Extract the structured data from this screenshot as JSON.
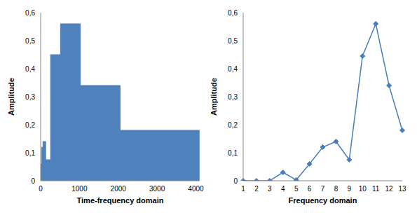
{
  "chart_data": [
    {
      "type": "area",
      "x_label": "Time-frequency domain",
      "y_label": "Amplitude",
      "color": "#4f81bd",
      "x": [
        0,
        30,
        30,
        60,
        60,
        130,
        130,
        256,
        256,
        512,
        512,
        1024,
        1024,
        2048,
        2048,
        4096
      ],
      "values": [
        0.06,
        0.06,
        0.12,
        0.12,
        0.14,
        0.14,
        0.075,
        0.075,
        0.45,
        0.45,
        0.56,
        0.56,
        0.34,
        0.34,
        0.18,
        0.18
      ],
      "xlim": [
        0,
        4100
      ],
      "xticks": [
        0,
        1000,
        2000,
        3000,
        4000
      ],
      "ylim": [
        0,
        0.6
      ],
      "yticks": [
        0,
        {
          "value": 0.1,
          "label": "0,1"
        },
        {
          "value": 0.2,
          "label": "0,2"
        },
        {
          "value": 0.3,
          "label": "0,3"
        },
        {
          "value": 0.4,
          "label": "0,4"
        },
        {
          "value": 0.5,
          "label": "0,5"
        },
        {
          "value": 0.6,
          "label": "0,6"
        }
      ],
      "grid": false
    },
    {
      "type": "line",
      "x_label": "Frequency domain",
      "y_label": "Amplitude",
      "color": "#4a7ebb",
      "marker": "diamond",
      "categories": [
        "1",
        "2",
        "3",
        "4",
        "5",
        "6",
        "7",
        "8",
        "9",
        "10",
        "11",
        "12",
        "13"
      ],
      "values": [
        0,
        0,
        0,
        0.03,
        0.003,
        0.06,
        0.12,
        0.14,
        0.075,
        0.445,
        0.56,
        0.34,
        0.18
      ],
      "ylim": [
        0,
        0.6
      ],
      "yticks": [
        0,
        {
          "value": 0.1,
          "label": "0,1"
        },
        {
          "value": 0.2,
          "label": "0,2"
        },
        {
          "value": 0.3,
          "label": "0,3"
        },
        {
          "value": 0.4,
          "label": "0,4"
        },
        {
          "value": 0.5,
          "label": "0,5"
        },
        {
          "value": 0.6,
          "label": "0,6"
        }
      ],
      "grid": false
    }
  ]
}
